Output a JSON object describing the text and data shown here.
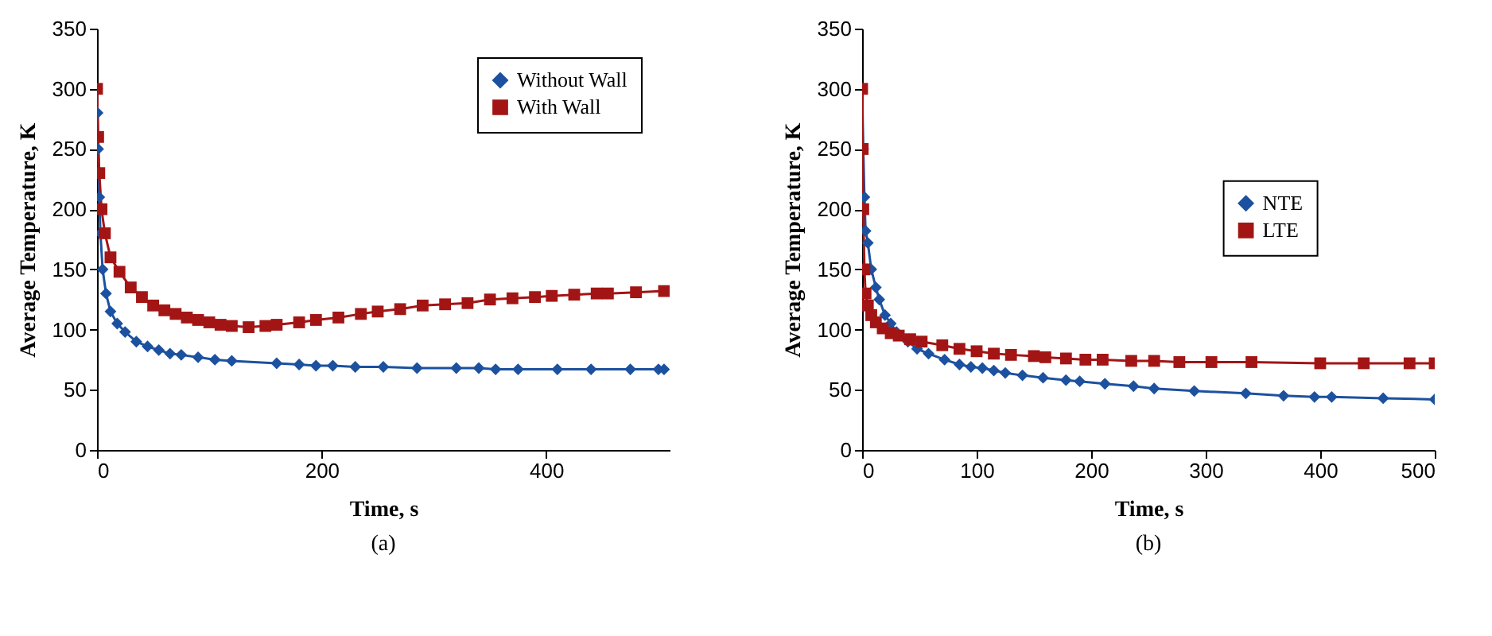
{
  "chart_data": [
    {
      "type": "line",
      "title": "(a)",
      "xlabel": "Time, s",
      "ylabel": "Average Temperature, K",
      "xlim": [
        0,
        510
      ],
      "xticks": [
        0,
        200,
        400
      ],
      "ylim": [
        0,
        350
      ],
      "yticks": [
        0,
        50,
        100,
        150,
        200,
        250,
        300,
        350
      ],
      "grid": false,
      "legend": "top right",
      "series": [
        {
          "name": "Without Wall",
          "color": "#1c519f",
          "marker": "diamond",
          "x": [
            0,
            0.5,
            1,
            2,
            3,
            5,
            8,
            12,
            18,
            25,
            35,
            45,
            55,
            65,
            75,
            90,
            105,
            120,
            160,
            180,
            195,
            210,
            230,
            255,
            285,
            320,
            340,
            355,
            375,
            410,
            440,
            475,
            500,
            505
          ],
          "values": [
            300,
            280,
            250,
            210,
            180,
            150,
            130,
            115,
            105,
            98,
            90,
            86,
            83,
            80,
            79,
            77,
            75,
            74,
            72,
            71,
            70,
            70,
            69,
            69,
            68,
            68,
            68,
            67,
            67,
            67,
            67,
            67,
            67,
            67
          ]
        },
        {
          "name": "With Wall",
          "color": "#a31515",
          "marker": "square",
          "x": [
            0,
            1,
            2,
            4,
            7,
            12,
            20,
            30,
            40,
            50,
            60,
            70,
            80,
            90,
            100,
            110,
            120,
            135,
            150,
            160,
            180,
            195,
            215,
            235,
            250,
            270,
            290,
            310,
            330,
            350,
            370,
            390,
            405,
            425,
            445,
            455,
            480,
            505
          ],
          "values": [
            300,
            260,
            230,
            200,
            180,
            160,
            148,
            135,
            127,
            120,
            116,
            113,
            110,
            108,
            106,
            104,
            103,
            102,
            103,
            104,
            106,
            108,
            110,
            113,
            115,
            117,
            120,
            121,
            122,
            125,
            126,
            127,
            128,
            129,
            130,
            130,
            131,
            132
          ]
        }
      ]
    },
    {
      "type": "line",
      "title": "(b)",
      "xlabel": "Time, s",
      "ylabel": "Average Temperature, K",
      "xlim": [
        0,
        500
      ],
      "xticks": [
        0,
        100,
        200,
        300,
        400,
        500
      ],
      "ylim": [
        0,
        350
      ],
      "yticks": [
        0,
        50,
        100,
        150,
        200,
        250,
        300,
        350
      ],
      "grid": false,
      "legend": "right",
      "series": [
        {
          "name": "NTE",
          "color": "#1c519f",
          "marker": "diamond",
          "x": [
            0,
            1,
            2,
            3,
            5,
            8,
            12,
            15,
            20,
            25,
            30,
            40,
            48,
            58,
            72,
            85,
            95,
            105,
            115,
            125,
            140,
            158,
            178,
            190,
            212,
            237,
            255,
            290,
            335,
            368,
            395,
            410,
            455,
            500
          ],
          "values": [
            300,
            250,
            210,
            182,
            172,
            150,
            135,
            125,
            112,
            105,
            98,
            90,
            84,
            80,
            75,
            71,
            69,
            68,
            66,
            64,
            62,
            60,
            58,
            57,
            55,
            53,
            51,
            49,
            47,
            45,
            44,
            44,
            43,
            42
          ]
        },
        {
          "name": "LTE",
          "color": "#a31515",
          "marker": "square",
          "x": [
            0,
            0.5,
            1,
            2,
            3,
            5,
            8,
            12,
            18,
            25,
            32,
            42,
            52,
            70,
            85,
            100,
            115,
            130,
            150,
            160,
            178,
            195,
            210,
            235,
            255,
            277,
            305,
            340,
            400,
            438,
            478,
            500
          ],
          "values": [
            300,
            250,
            200,
            150,
            130,
            120,
            112,
            106,
            101,
            97,
            95,
            92,
            90,
            87,
            84,
            82,
            80,
            79,
            78,
            77,
            76,
            75,
            75,
            74,
            74,
            73,
            73,
            73,
            72,
            72,
            72,
            72
          ]
        }
      ]
    }
  ]
}
